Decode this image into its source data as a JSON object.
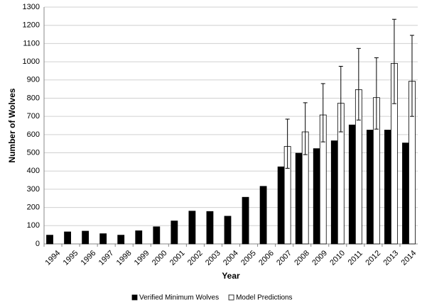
{
  "chart_data": {
    "type": "bar",
    "x_label": "Year",
    "y_label": "Number of Wolves",
    "categories": [
      "1994",
      "1995",
      "1996",
      "1997",
      "1998",
      "1999",
      "2000",
      "2001",
      "2002",
      "2003",
      "2004",
      "2005",
      "2006",
      "2007",
      "2008",
      "2009",
      "2010",
      "2011",
      "2012",
      "2013",
      "2014"
    ],
    "series": [
      {
        "name": "Verified Minimum Wolves",
        "color": "#000000",
        "values": [
          48,
          66,
          70,
          56,
          48,
          72,
          94,
          126,
          180,
          178,
          152,
          256,
          316,
          423,
          498,
          523,
          566,
          653,
          625,
          625,
          554
        ]
      },
      {
        "name": "Model Predictions",
        "color": "#ffffff",
        "values": [
          null,
          null,
          null,
          null,
          null,
          null,
          null,
          null,
          null,
          null,
          null,
          null,
          null,
          535,
          615,
          708,
          772,
          847,
          803,
          991,
          893
        ],
        "lower": [
          null,
          null,
          null,
          null,
          null,
          null,
          null,
          null,
          null,
          null,
          null,
          null,
          null,
          415,
          490,
          560,
          615,
          680,
          630,
          770,
          700
        ],
        "upper": [
          null,
          null,
          null,
          null,
          null,
          null,
          null,
          null,
          null,
          null,
          null,
          null,
          null,
          685,
          775,
          880,
          975,
          1073,
          1022,
          1233,
          1145
        ]
      }
    ],
    "ylim": [
      0,
      1300
    ],
    "yticks": [
      0,
      100,
      200,
      300,
      400,
      500,
      600,
      700,
      800,
      900,
      1000,
      1100,
      1200,
      1300
    ],
    "grid": true,
    "legend": "bottom"
  }
}
